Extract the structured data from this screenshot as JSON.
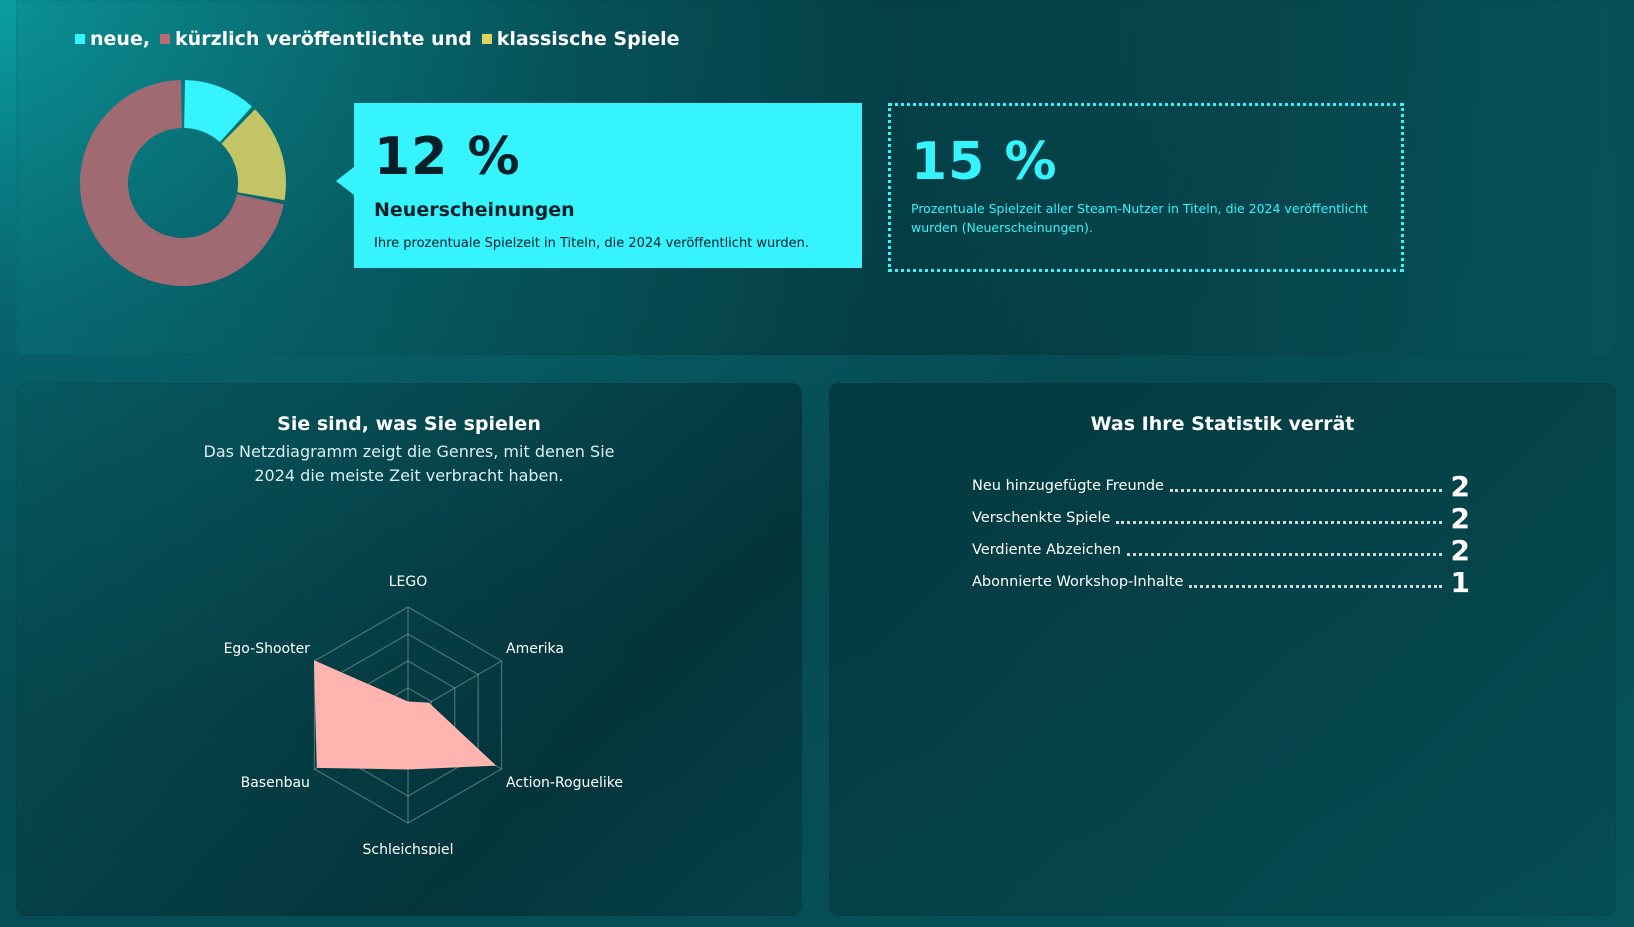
{
  "legend": [
    {
      "label": "neue,",
      "color": "#35f4fd"
    },
    {
      "label": "kürzlich veröffentlichte und",
      "color": "#b86b72"
    },
    {
      "label": "klassische Spiele",
      "color": "#e0d25e"
    }
  ],
  "donut": {
    "segments": [
      {
        "name": "neue",
        "percent": 12,
        "color": "#35f4fd"
      },
      {
        "name": "klassische",
        "percent": 16,
        "color": "#c2c466"
      },
      {
        "name": "kürzlich veröffentlichte",
        "percent": 72,
        "color": "#a06a72"
      }
    ]
  },
  "callout": {
    "value": "12 %",
    "title": "Neuerscheinungen",
    "description": "Ihre prozentuale Spielzeit in Titeln, die 2024 veröffentlicht wurden."
  },
  "comparison": {
    "value": "15 %",
    "description": "Prozentuale Spielzeit aller Steam-Nutzer in Titeln, die 2024 veröffentlicht wurden (Neuerscheinungen)."
  },
  "radar_section": {
    "title": "Sie sind, was Sie spielen",
    "subtitle": "Das Netzdiagramm zeigt die Genres, mit denen Sie 2024 die meiste Zeit verbracht haben."
  },
  "chart_data": {
    "type": "radar",
    "categories": [
      "LEGO",
      "Amerika",
      "Action-Roguelike",
      "Schleichspiel",
      "Basenbau",
      "Ego-Shooter"
    ],
    "values": [
      0.12,
      0.22,
      0.93,
      0.5,
      0.97,
      1.0
    ],
    "rings": 4,
    "fill_color": "#ffb4b0"
  },
  "stats_section": {
    "title": "Was Ihre Statistik verrät",
    "items": [
      {
        "label": "Neu hinzugefügte Freunde",
        "value": "2"
      },
      {
        "label": "Verschenkte Spiele",
        "value": "2"
      },
      {
        "label": "Verdiente Abzeichen",
        "value": "2"
      },
      {
        "label": "Abonnierte Workshop-Inhalte",
        "value": "1"
      }
    ]
  }
}
